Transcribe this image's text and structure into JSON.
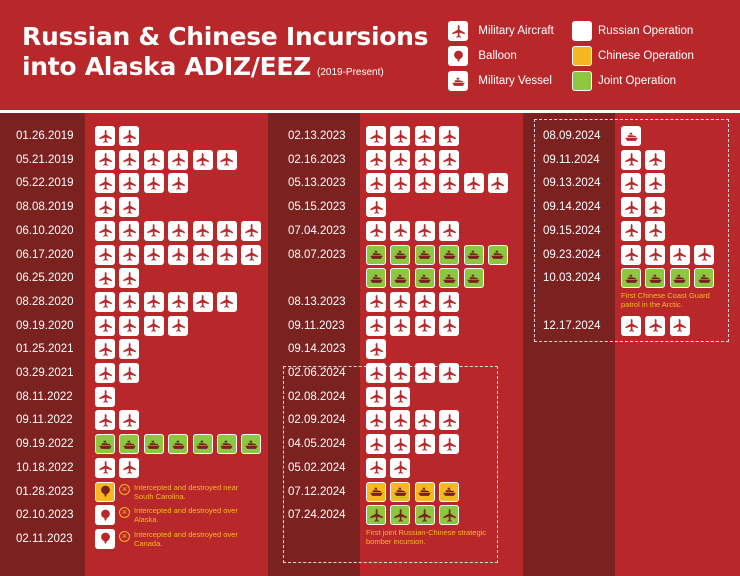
{
  "title": {
    "line1": "Russian & Chinese Incursions",
    "line2": "into Alaska ADIZ/EEZ",
    "subtitle": "(2019-Present)"
  },
  "legend": {
    "military_aircraft": "Military Aircraft",
    "balloon": "Balloon",
    "military_vessel": "Military Vessel",
    "russian_operation": "Russian Operation",
    "chinese_operation": "Chinese Operation",
    "joint_operation": "Joint Operation"
  },
  "colors": {
    "background": "#b8282a",
    "date_column": "#7b2220",
    "russian": "#ffffff",
    "chinese": "#f6b820",
    "joint": "#8dc63f",
    "icon_dark": "#b8282a"
  },
  "columns": [
    [
      {
        "date": "01.26.2019",
        "rows": [
          {
            "op": "russian",
            "type": "aircraft",
            "count": 2
          }
        ]
      },
      {
        "date": "05.21.2019",
        "rows": [
          {
            "op": "russian",
            "type": "aircraft",
            "count": 6
          }
        ]
      },
      {
        "date": "05.22.2019",
        "rows": [
          {
            "op": "russian",
            "type": "aircraft",
            "count": 4
          }
        ]
      },
      {
        "date": "08.08.2019",
        "rows": [
          {
            "op": "russian",
            "type": "aircraft",
            "count": 2
          }
        ]
      },
      {
        "date": "06.10.2020",
        "rows": [
          {
            "op": "russian",
            "type": "aircraft",
            "count": 7
          }
        ]
      },
      {
        "date": "06.17.2020",
        "rows": [
          {
            "op": "russian",
            "type": "aircraft",
            "count": 7
          }
        ]
      },
      {
        "date": "06.25.2020",
        "rows": [
          {
            "op": "russian",
            "type": "aircraft",
            "count": 2
          }
        ]
      },
      {
        "date": "08.28.2020",
        "rows": [
          {
            "op": "russian",
            "type": "aircraft",
            "count": 6
          }
        ]
      },
      {
        "date": "09.19.2020",
        "rows": [
          {
            "op": "russian",
            "type": "aircraft",
            "count": 4
          }
        ]
      },
      {
        "date": "01.25.2021",
        "rows": [
          {
            "op": "russian",
            "type": "aircraft",
            "count": 2
          }
        ]
      },
      {
        "date": "03.29.2021",
        "rows": [
          {
            "op": "russian",
            "type": "aircraft",
            "count": 2
          }
        ]
      },
      {
        "date": "08.11.2022",
        "rows": [
          {
            "op": "russian",
            "type": "aircraft",
            "count": 1
          }
        ]
      },
      {
        "date": "09.11.2022",
        "rows": [
          {
            "op": "russian",
            "type": "aircraft",
            "count": 2
          }
        ]
      },
      {
        "date": "09.19.2022",
        "rows": [
          {
            "op": "joint",
            "type": "vessel",
            "count": 7
          }
        ]
      },
      {
        "date": "10.18.2022",
        "rows": [
          {
            "op": "russian",
            "type": "aircraft",
            "count": 2
          }
        ]
      },
      {
        "date": "01.28.2023",
        "rows": [
          {
            "op": "chinese",
            "type": "balloon",
            "count": 1
          }
        ],
        "note": "Intercepted and destroyed near South Carolina."
      },
      {
        "date": "02.10.2023",
        "rows": [
          {
            "op": "russian",
            "type": "balloon",
            "count": 1
          }
        ],
        "note": "Intercepted and destroyed over Alaska."
      },
      {
        "date": "02.11.2023",
        "rows": [
          {
            "op": "russian",
            "type": "balloon",
            "count": 1
          }
        ],
        "note": "Intercepted and destroyed over Canada."
      }
    ],
    [
      {
        "date": "02.13.2023",
        "rows": [
          {
            "op": "russian",
            "type": "aircraft",
            "count": 4
          }
        ]
      },
      {
        "date": "02.16.2023",
        "rows": [
          {
            "op": "russian",
            "type": "aircraft",
            "count": 4
          }
        ]
      },
      {
        "date": "05.13.2023",
        "rows": [
          {
            "op": "russian",
            "type": "aircraft",
            "count": 6
          }
        ]
      },
      {
        "date": "05.15.2023",
        "rows": [
          {
            "op": "russian",
            "type": "aircraft",
            "count": 1
          }
        ]
      },
      {
        "date": "07.04.2023",
        "rows": [
          {
            "op": "russian",
            "type": "aircraft",
            "count": 4
          }
        ]
      },
      {
        "date": "08.07.2023",
        "rows": [
          {
            "op": "joint",
            "type": "vessel",
            "count": 6
          },
          {
            "op": "joint",
            "type": "vessel",
            "count": 5
          }
        ]
      },
      {
        "date": "08.13.2023",
        "rows": [
          {
            "op": "russian",
            "type": "aircraft",
            "count": 4
          }
        ]
      },
      {
        "date": "09.11.2023",
        "rows": [
          {
            "op": "russian",
            "type": "aircraft",
            "count": 4
          }
        ]
      },
      {
        "date": "09.14.2023",
        "rows": [
          {
            "op": "russian",
            "type": "aircraft",
            "count": 1
          }
        ]
      },
      {
        "date": "02.06.2024",
        "rows": [
          {
            "op": "russian",
            "type": "aircraft",
            "count": 4
          }
        ]
      },
      {
        "date": "02.08.2024",
        "rows": [
          {
            "op": "russian",
            "type": "aircraft",
            "count": 2
          }
        ]
      },
      {
        "date": "02.09.2024",
        "rows": [
          {
            "op": "russian",
            "type": "aircraft",
            "count": 4
          }
        ]
      },
      {
        "date": "04.05.2024",
        "rows": [
          {
            "op": "russian",
            "type": "aircraft",
            "count": 4
          }
        ]
      },
      {
        "date": "05.02.2024",
        "rows": [
          {
            "op": "russian",
            "type": "aircraft",
            "count": 2
          }
        ]
      },
      {
        "date": "07.12.2024",
        "rows": [
          {
            "op": "chinese",
            "type": "vessel",
            "count": 4
          }
        ]
      },
      {
        "date": "07.24.2024",
        "rows": [
          {
            "op": "joint",
            "type": "aircraft",
            "count": 4
          }
        ],
        "caption": "First joint Russian-Chinese strategic bomber incursion."
      }
    ],
    [
      {
        "date": "08.09.2024",
        "rows": [
          {
            "op": "russian",
            "type": "vessel",
            "count": 1
          }
        ]
      },
      {
        "date": "09.11.2024",
        "rows": [
          {
            "op": "russian",
            "type": "aircraft",
            "count": 2
          }
        ]
      },
      {
        "date": "09.13.2024",
        "rows": [
          {
            "op": "russian",
            "type": "aircraft",
            "count": 2
          }
        ]
      },
      {
        "date": "09.14.2024",
        "rows": [
          {
            "op": "russian",
            "type": "aircraft",
            "count": 2
          }
        ]
      },
      {
        "date": "09.15.2024",
        "rows": [
          {
            "op": "russian",
            "type": "aircraft",
            "count": 2
          }
        ]
      },
      {
        "date": "09.23.2024",
        "rows": [
          {
            "op": "russian",
            "type": "aircraft",
            "count": 4
          }
        ]
      },
      {
        "date": "10.03.2024",
        "rows": [
          {
            "op": "joint",
            "type": "vessel",
            "count": 4
          }
        ],
        "caption": "First Chinese Coast Guard patrol in the Arctic."
      },
      {
        "date": "12.17.2024",
        "rows": [
          {
            "op": "russian",
            "type": "aircraft",
            "count": 3
          }
        ]
      }
    ]
  ]
}
